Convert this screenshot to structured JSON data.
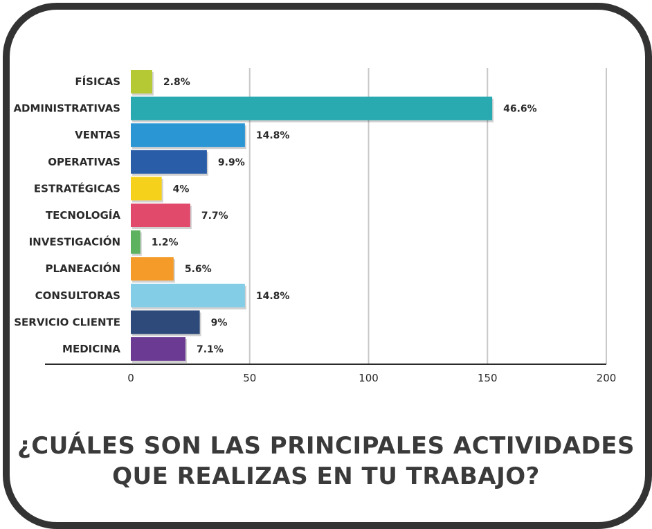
{
  "chart_data": {
    "type": "bar",
    "orientation": "horizontal",
    "title_lines": [
      "¿CUÁLES SON LAS PRINCIPALES ACTIVIDADES",
      "QUE REALIZAS EN TU TRABAJO?"
    ],
    "categories": [
      "FÍSICAS",
      "ADMINISTRATIVAS",
      "VENTAS",
      "OPERATIVAS",
      "ESTRATÉGICAS",
      "TECNOLOGÍA",
      "INVESTIGACIÓN",
      "PLANEACIÓN",
      "CONSULTORAS",
      "SERVICIO CLIENTE",
      "MEDICINA"
    ],
    "values": [
      9,
      152,
      48,
      32,
      13,
      25,
      4,
      18,
      48,
      29,
      23
    ],
    "value_labels": [
      "2.8%",
      "46.6%",
      "14.8%",
      "9.9%",
      "4%",
      "7.7%",
      "1.2%",
      "5.6%",
      "14.8%",
      "9%",
      "7.1%"
    ],
    "colors": [
      "#b5c934",
      "#29aab1",
      "#2a96d4",
      "#2a5da8",
      "#f5d11b",
      "#e14a6b",
      "#5db25f",
      "#f49b2a",
      "#84cde6",
      "#2e4a7a",
      "#6b3b93"
    ],
    "xticks": [
      "0",
      "50",
      "100",
      "150",
      "200"
    ],
    "xlim": [
      0,
      200
    ],
    "grid": true,
    "legend": "none"
  }
}
